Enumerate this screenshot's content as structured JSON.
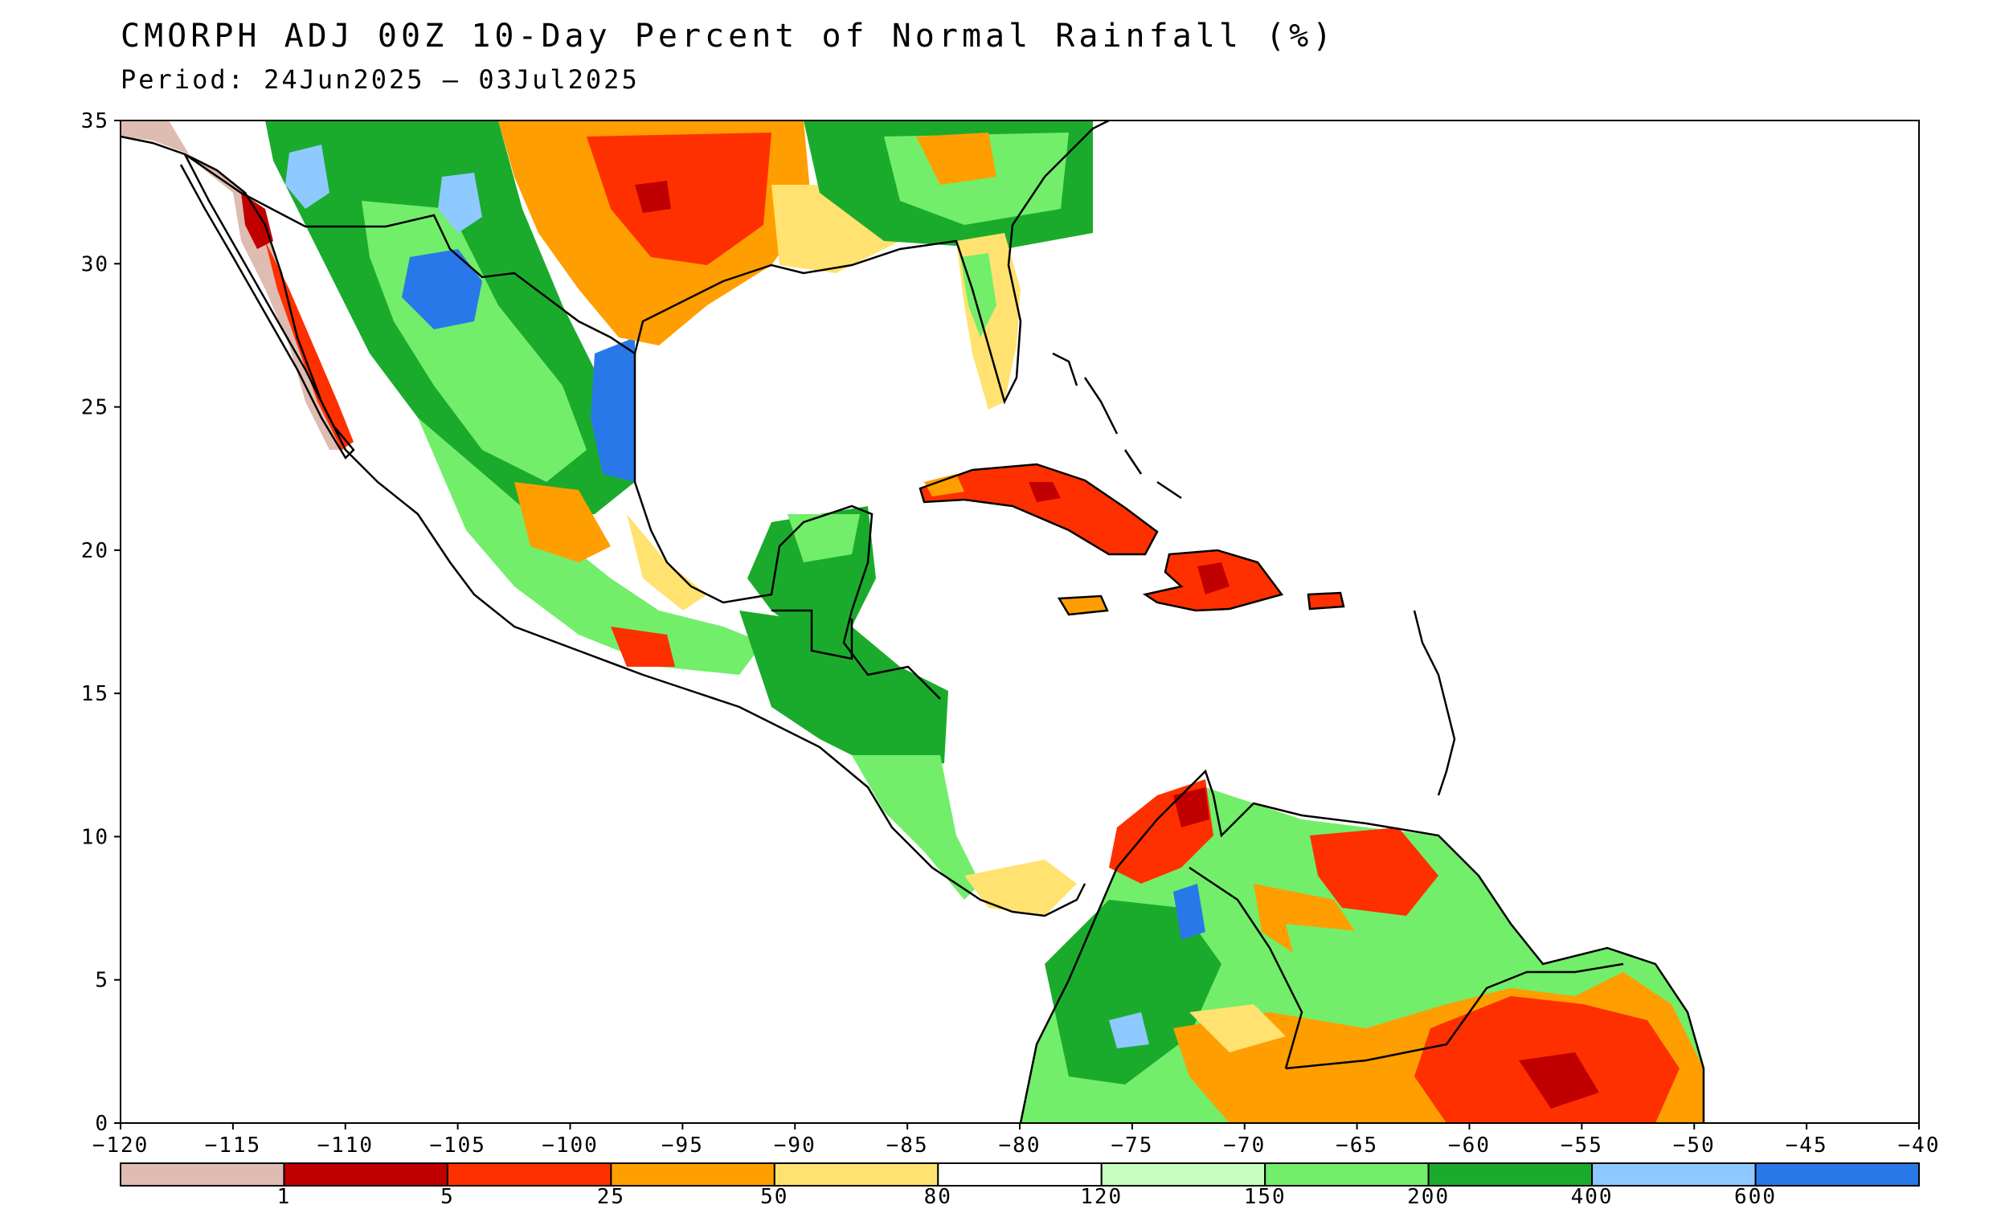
{
  "title": "CMORPH ADJ 00Z 10-Day Percent of Normal Rainfall (%)",
  "period": "Period: 24Jun2025 – 03Jul2025",
  "map": {
    "lon_range": [
      -120,
      -40
    ],
    "lat_range": [
      0,
      35
    ],
    "lon_ticks": [
      "-120",
      "-115",
      "-110",
      "-105",
      "-100",
      "-95",
      "-90",
      "-85",
      "-80",
      "-75",
      "-70",
      "-65",
      "-60",
      "-55",
      "-50",
      "-45",
      "-40"
    ],
    "lat_ticks": [
      "0",
      "5",
      "10",
      "15",
      "20",
      "25",
      "30",
      "35"
    ],
    "regions": [
      "Mexico",
      "Gulf of Mexico",
      "Central America",
      "Cuba",
      "Hispaniola",
      "Jamaica",
      "Puerto Rico",
      "Florida",
      "Southern United States",
      "Colombia",
      "Venezuela",
      "Guyana",
      "Suriname",
      "Northern Brazil"
    ]
  },
  "colorbar": {
    "colors": [
      "#dfbcb2",
      "#c00000",
      "#ff3000",
      "#ff9e00",
      "#ffe26f",
      "#ffffff",
      "#c6ffc0",
      "#72ee6a",
      "#1bab2c",
      "#8ec9ff",
      "#2978ea"
    ],
    "labels": [
      "1",
      "5",
      "25",
      "50",
      "80",
      "120",
      "150",
      "200",
      "400",
      "600"
    ]
  },
  "colors": {
    "background": "#ffffff",
    "frame": "#000000",
    "coast": "#000000"
  }
}
